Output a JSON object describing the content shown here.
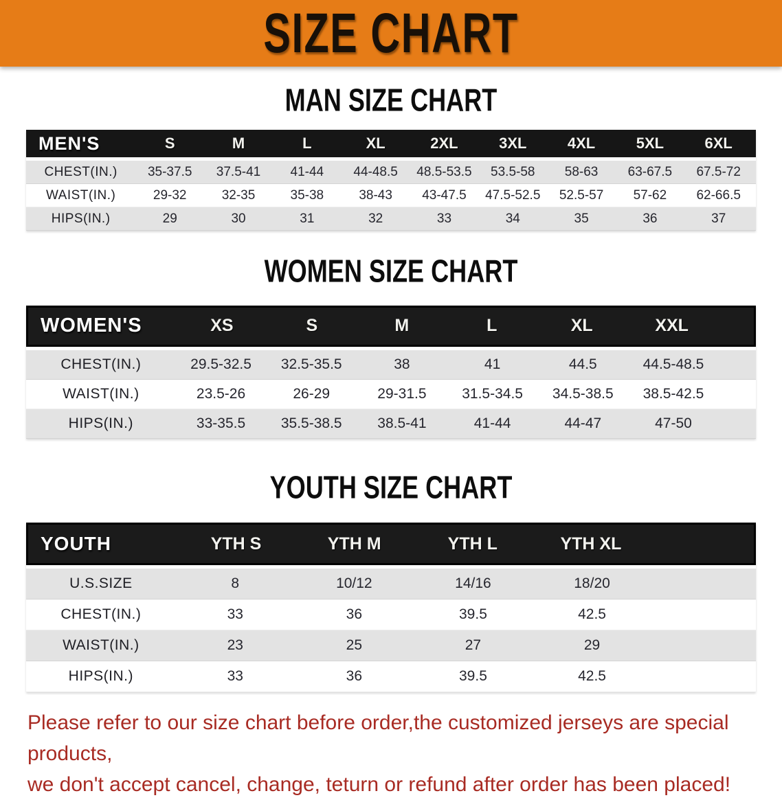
{
  "banner": {
    "title": "SIZE CHART"
  },
  "colors": {
    "banner_bg": "#e67c17",
    "table_header_bg": "#161616",
    "row_shade": "#e3e3e3",
    "note_red": "#a82b23",
    "heading_ink": "#0d0d0d"
  },
  "sections": [
    {
      "heading": "MAN SIZE CHART",
      "table": {
        "header_label": "MEN'S",
        "columns": [
          "S",
          "M",
          "L",
          "XL",
          "2XL",
          "3XL",
          "4XL",
          "5XL",
          "6XL"
        ],
        "rows": [
          {
            "label": "CHEST(IN.)",
            "values": [
              "35-37.5",
              "37.5-41",
              "41-44",
              "44-48.5",
              "48.5-53.5",
              "53.5-58",
              "58-63",
              "63-67.5",
              "67.5-72"
            ]
          },
          {
            "label": "WAIST(IN.)",
            "values": [
              "29-32",
              "32-35",
              "35-38",
              "38-43",
              "43-47.5",
              "47.5-52.5",
              "52.5-57",
              "57-62",
              "62-66.5"
            ]
          },
          {
            "label": "HIPS(IN.)",
            "values": [
              "29",
              "30",
              "31",
              "32",
              "33",
              "34",
              "35",
              "36",
              "37"
            ]
          }
        ]
      }
    },
    {
      "heading": "WOMEN SIZE CHART",
      "table": {
        "header_label": "WOMEN'S",
        "columns": [
          "XS",
          "S",
          "M",
          "L",
          "XL",
          "XXL"
        ],
        "rows": [
          {
            "label": "CHEST(IN.)",
            "values": [
              "29.5-32.5",
              "32.5-35.5",
              "38",
              "41",
              "44.5",
              "44.5-48.5"
            ]
          },
          {
            "label": "WAIST(IN.)",
            "values": [
              "23.5-26",
              "26-29",
              "29-31.5",
              "31.5-34.5",
              "34.5-38.5",
              "38.5-42.5"
            ]
          },
          {
            "label": "HIPS(IN.)",
            "values": [
              "33-35.5",
              "35.5-38.5",
              "38.5-41",
              "41-44",
              "44-47",
              "47-50"
            ]
          }
        ]
      }
    },
    {
      "heading": "YOUTH SIZE CHART",
      "table": {
        "header_label": "YOUTH",
        "columns": [
          "YTH S",
          "YTH M",
          "YTH L",
          "YTH XL"
        ],
        "rows": [
          {
            "label": "U.S.SIZE",
            "values": [
              "8",
              "10/12",
              "14/16",
              "18/20"
            ]
          },
          {
            "label": "CHEST(IN.)",
            "values": [
              "33",
              "36",
              "39.5",
              "42.5"
            ]
          },
          {
            "label": "WAIST(IN.)",
            "values": [
              "23",
              "25",
              "27",
              "29"
            ]
          },
          {
            "label": "HIPS(IN.)",
            "values": [
              "33",
              "36",
              "39.5",
              "42.5"
            ]
          }
        ]
      }
    }
  ],
  "footer": {
    "lines": [
      "Please refer to our size chart before order,the customized jerseys are special products,",
      "we don't accept cancel, change, teturn or refund after order has been placed!"
    ]
  }
}
